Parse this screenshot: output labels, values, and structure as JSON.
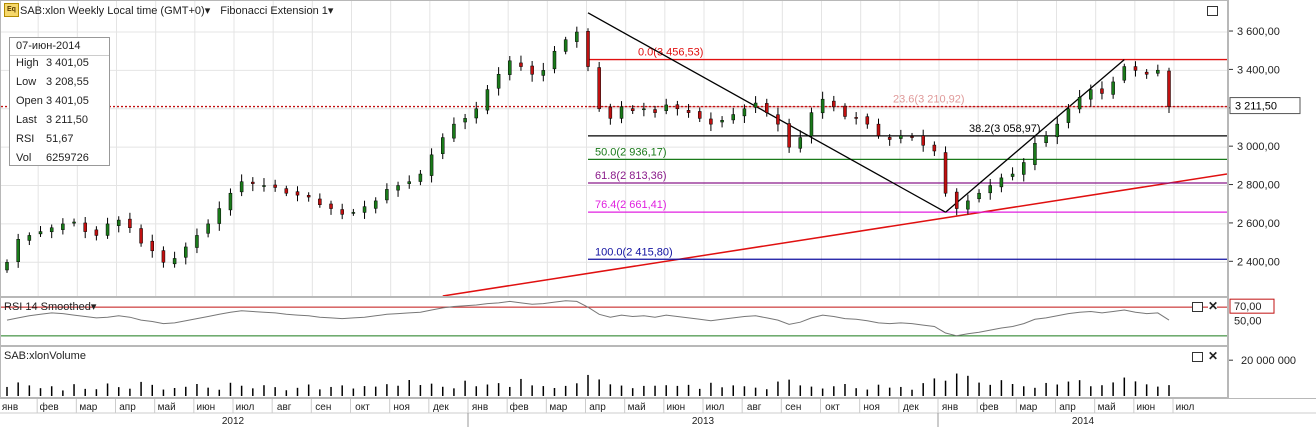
{
  "header": {
    "app_logo": "Eq",
    "symbol_label": "SAB:xlon Weekly Local time (GMT+0)",
    "study_label": "Fibonacci Extension 1"
  },
  "info": {
    "date": "07-июн-2014",
    "rows": [
      {
        "label": "High",
        "value": "3 401,05"
      },
      {
        "label": "Low",
        "value": "3 208,55"
      },
      {
        "label": "Open",
        "value": "3 401,05"
      },
      {
        "label": "Last",
        "value": "3 211,50"
      },
      {
        "label": "RSI",
        "value": "51,67"
      },
      {
        "label": "Vol",
        "value": "6259726"
      }
    ]
  },
  "rsi_panel": {
    "title": "RSI 14 Smoothed",
    "tick_70": "70,00",
    "tick_50": "50,00"
  },
  "volume_panel": {
    "title": "SAB:xlonVolume",
    "tick": "20 000 000"
  },
  "last_price_label": "3 211,50",
  "chart_data": [
    {
      "type": "candlestick",
      "title": "SAB:xlon Weekly",
      "ylim": [
        2240,
        3720
      ],
      "yticks": [
        "3 600,00",
        "3 400,00",
        "3 200,00",
        "3 000,00",
        "2 800,00",
        "2 600,00",
        "2 400,00"
      ],
      "ytick_values": [
        3600,
        3400,
        3200,
        3000,
        2800,
        2600,
        2400
      ],
      "last_value": 3211.5,
      "x_month_labels": [
        "янв",
        "фев",
        "мар",
        "апр",
        "май",
        "июн",
        "июл",
        "авг",
        "сен",
        "окт",
        "ноя",
        "дек",
        "янв",
        "фев",
        "мар",
        "апр",
        "май",
        "июн",
        "июл",
        "авг",
        "сен",
        "окт",
        "ноя",
        "дек",
        "янв",
        "фев",
        "мар",
        "апр",
        "май",
        "июн",
        "июл"
      ],
      "x_year_labels": [
        "2012",
        "2013",
        "2014"
      ],
      "close": [
        2400,
        2520,
        2540,
        2560,
        2580,
        2600,
        2610,
        2560,
        2540,
        2600,
        2620,
        2580,
        2500,
        2460,
        2400,
        2420,
        2480,
        2540,
        2600,
        2680,
        2760,
        2820,
        2810,
        2800,
        2790,
        2760,
        2750,
        2740,
        2700,
        2680,
        2650,
        2660,
        2690,
        2720,
        2780,
        2800,
        2820,
        2860,
        2960,
        3050,
        3120,
        3150,
        3200,
        3300,
        3380,
        3450,
        3420,
        3380,
        3400,
        3500,
        3560,
        3600,
        3420,
        3200,
        3150,
        3210,
        3190,
        3200,
        3180,
        3220,
        3200,
        3180,
        3150,
        3120,
        3140,
        3170,
        3200,
        3230,
        3180,
        3120,
        3000,
        3050,
        3180,
        3250,
        3210,
        3160,
        3150,
        3120,
        3060,
        3040,
        3060,
        3050,
        3010,
        2980,
        2760,
        2680,
        2720,
        2760,
        2800,
        2840,
        2860,
        2920,
        3020,
        3060,
        3120,
        3200,
        3260,
        3300,
        3280,
        3340,
        3420,
        3400,
        3380,
        3401,
        3211
      ],
      "fibonacci_extension": [
        {
          "label": "0.0(3 456,53)",
          "value": 3456.53,
          "color": "#e01010"
        },
        {
          "label": "23.6(3 210,92)",
          "value": 3210.92,
          "color": "#e09a9a"
        },
        {
          "label": "38.2(3 058,97)",
          "value": 3058.97,
          "color": "#000000"
        },
        {
          "label": "50.0(2 936,17)",
          "value": 2936.17,
          "color": "#1a7a1a"
        },
        {
          "label": "61.8(2 813,36)",
          "value": 2813.36,
          "color": "#8a1a8a"
        },
        {
          "label": "76.4(2 661,41)",
          "value": 2661.41,
          "color": "#e020e0"
        },
        {
          "label": "100.0(2 415,80)",
          "value": 2415.8,
          "color": "#1010a0"
        }
      ],
      "up_color": "#1a7a1a",
      "down_color": "#c01010"
    },
    {
      "type": "line",
      "title": "RSI 14 Smoothed",
      "ylim": [
        20,
        80
      ],
      "yticks": [
        "70,00",
        "50,00"
      ],
      "guide_levels": [
        70,
        30
      ],
      "values": [
        52,
        55,
        58,
        60,
        62,
        61,
        59,
        57,
        55,
        56,
        58,
        56,
        52,
        50,
        47,
        48,
        51,
        54,
        57,
        60,
        63,
        65,
        64,
        63,
        62,
        60,
        59,
        58,
        56,
        55,
        54,
        55,
        56,
        58,
        60,
        61,
        62,
        63,
        66,
        69,
        71,
        72,
        73,
        75,
        76,
        78,
        76,
        74,
        75,
        77,
        79,
        78,
        70,
        60,
        56,
        59,
        57,
        58,
        56,
        59,
        57,
        55,
        53,
        51,
        53,
        55,
        57,
        58,
        55,
        52,
        46,
        49,
        55,
        59,
        57,
        54,
        53,
        51,
        48,
        47,
        48,
        47,
        45,
        43,
        34,
        30,
        33,
        35,
        38,
        41,
        43,
        47,
        53,
        55,
        58,
        61,
        63,
        64,
        62,
        64,
        66,
        63,
        61,
        62,
        52
      ],
      "line_color": "#777777"
    },
    {
      "type": "bar",
      "title": "SAB:xlonVolume",
      "ylim": [
        0,
        27000000
      ],
      "yticks": [
        "20 000 000"
      ],
      "values": [
        5200000,
        7800000,
        6100000,
        4500000,
        5600000,
        3200000,
        6800000,
        4100000,
        3900000,
        7200000,
        5100000,
        4200000,
        8100000,
        6400000,
        3700000,
        4600000,
        5300000,
        6900000,
        4800000,
        3600000,
        7600000,
        5900000,
        4400000,
        6200000,
        5100000,
        3300000,
        4700000,
        6600000,
        3800000,
        5200000,
        6100000,
        4300000,
        5700000,
        5400000,
        6800000,
        5900000,
        9200000,
        6300000,
        7100000,
        5300000,
        4400000,
        8800000,
        5600000,
        6600000,
        7400000,
        5200000,
        9800000,
        6100000,
        5700000,
        4600000,
        5800000,
        7300000,
        12100000,
        9500000,
        6700000,
        6000000,
        4500000,
        5800000,
        5900000,
        6200000,
        5800000,
        6400000,
        4100000,
        7600000,
        5000000,
        6100000,
        5600000,
        4800000,
        3900000,
        8300000,
        9400000,
        6100000,
        5400000,
        4300000,
        5600000,
        6900000,
        4500000,
        3700000,
        6500000,
        4800000,
        5200000,
        3600000,
        7400000,
        10100000,
        8800000,
        12900000,
        11600000,
        7700000,
        6400000,
        9100000,
        6900000,
        5600000,
        4700000,
        7500000,
        6600000,
        8300000,
        9100000,
        5600000,
        6200000,
        7800000,
        10600000,
        8400000,
        6700000,
        5400000,
        6259726
      ],
      "bar_color": "#000000"
    }
  ]
}
